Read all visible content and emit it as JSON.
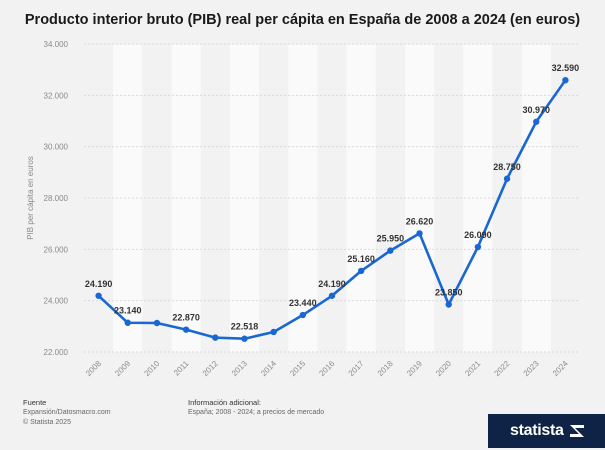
{
  "chart_data": {
    "type": "line",
    "title": "Producto interior bruto (PIB) real per cápita en España de 2008 a 2024 (en euros)",
    "ylabel": "PIB per cápita en euros",
    "xlabel": "",
    "categories": [
      "2008",
      "2009",
      "2010",
      "2011",
      "2012",
      "2013",
      "2014",
      "2015",
      "2016",
      "2017",
      "2018",
      "2019",
      "2020",
      "2021",
      "2022",
      "2023",
      "2024"
    ],
    "series": [
      {
        "values": [
          24190,
          23140,
          23130,
          22870,
          22560,
          22518,
          22780,
          23440,
          24190,
          25160,
          25950,
          26620,
          23850,
          26090,
          28750,
          30970,
          32590
        ]
      }
    ],
    "data_labels": [
      "24.190",
      "23.140",
      null,
      "22.870",
      null,
      "22.518",
      null,
      "23.440",
      "24.190",
      "25.160",
      "25.950",
      "26.620",
      "23.850",
      "26.090",
      "28.750",
      "30.970",
      "32.590"
    ],
    "ylim": [
      22000,
      34000
    ],
    "yticks": [
      22000,
      24000,
      26000,
      28000,
      30000,
      32000,
      34000
    ],
    "ytick_labels": [
      "22.000",
      "24.000",
      "26.000",
      "28.000",
      "30.000",
      "32.000",
      "34.000"
    ],
    "line_color": "#1967d2",
    "grid": true
  },
  "footer": {
    "source_heading": "Fuente",
    "source_lines": [
      "Expansión/Datosmacro.com",
      "© Statista 2025"
    ],
    "info_heading": "Información adicional:",
    "info_text": "España; 2008 - 2024; a precios de mercado"
  },
  "brand": {
    "name": "statista",
    "color": "#0f2346"
  }
}
